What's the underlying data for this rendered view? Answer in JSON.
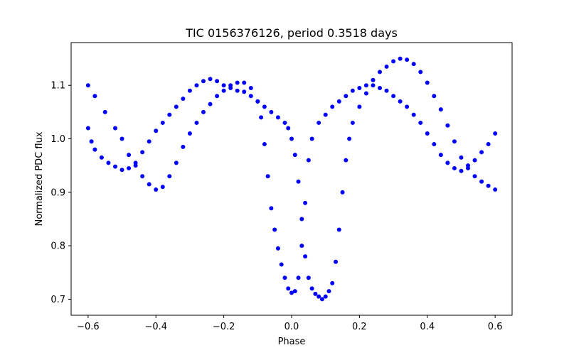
{
  "chart_data": {
    "type": "scatter",
    "title": "TIC 0156376126, period 0.3518 days",
    "xlabel": "Phase",
    "ylabel": "Normalized PDC flux",
    "xlim": [
      -0.65,
      0.65
    ],
    "ylim": [
      0.67,
      1.18
    ],
    "xticks": [
      -0.6,
      -0.4,
      -0.2,
      0.0,
      0.2,
      0.4,
      0.6
    ],
    "xtick_labels": [
      "−0.6",
      "−0.4",
      "−0.2",
      "0.0",
      "0.2",
      "0.4",
      "0.6"
    ],
    "yticks": [
      0.7,
      0.8,
      0.9,
      1.0,
      1.1
    ],
    "ytick_labels": [
      "0.7",
      "0.8",
      "0.9",
      "1.0",
      "1.1"
    ],
    "grid": false,
    "marker_color": "#0000ff",
    "series": [
      {
        "points": [
          [
            -0.6,
            1.1
          ],
          [
            -0.58,
            1.08
          ],
          [
            -0.55,
            1.05
          ],
          [
            -0.52,
            1.02
          ],
          [
            -0.5,
            1.0
          ],
          [
            -0.48,
            0.97
          ],
          [
            -0.46,
            0.95
          ],
          [
            -0.44,
            0.93
          ],
          [
            -0.42,
            0.915
          ],
          [
            -0.4,
            0.905
          ],
          [
            -0.38,
            0.91
          ],
          [
            -0.36,
            0.93
          ],
          [
            -0.34,
            0.955
          ],
          [
            -0.32,
            0.985
          ],
          [
            -0.3,
            1.01
          ],
          [
            -0.28,
            1.03
          ],
          [
            -0.26,
            1.05
          ],
          [
            -0.24,
            1.065
          ],
          [
            -0.22,
            1.08
          ],
          [
            -0.2,
            1.09
          ],
          [
            -0.18,
            1.1
          ],
          [
            -0.16,
            1.105
          ],
          [
            -0.14,
            1.105
          ],
          [
            -0.12,
            1.095
          ],
          [
            -0.1,
            1.07
          ],
          [
            -0.09,
            1.04
          ],
          [
            -0.08,
            0.99
          ],
          [
            -0.07,
            0.93
          ],
          [
            -0.06,
            0.87
          ],
          [
            -0.05,
            0.83
          ],
          [
            -0.04,
            0.795
          ],
          [
            -0.03,
            0.765
          ],
          [
            -0.02,
            0.74
          ],
          [
            -0.01,
            0.72
          ],
          [
            0.0,
            0.712
          ],
          [
            0.01,
            0.715
          ],
          [
            0.02,
            0.74
          ],
          [
            0.03,
            0.8
          ],
          [
            0.04,
            0.88
          ],
          [
            0.05,
            0.96
          ],
          [
            0.06,
            1.0
          ],
          [
            0.08,
            1.03
          ],
          [
            0.1,
            1.045
          ],
          [
            0.12,
            1.06
          ],
          [
            0.14,
            1.07
          ],
          [
            0.16,
            1.08
          ],
          [
            0.18,
            1.09
          ],
          [
            0.2,
            1.095
          ],
          [
            0.22,
            1.1
          ],
          [
            0.24,
            1.1
          ],
          [
            0.26,
            1.095
          ],
          [
            0.28,
            1.09
          ],
          [
            0.3,
            1.08
          ],
          [
            0.32,
            1.07
          ],
          [
            0.34,
            1.06
          ],
          [
            0.36,
            1.045
          ],
          [
            0.38,
            1.03
          ],
          [
            0.4,
            1.01
          ],
          [
            0.42,
            0.99
          ],
          [
            0.44,
            0.97
          ],
          [
            0.46,
            0.955
          ],
          [
            0.48,
            0.945
          ],
          [
            0.5,
            0.94
          ],
          [
            0.52,
            0.95
          ],
          [
            0.54,
            0.96
          ],
          [
            0.56,
            0.975
          ],
          [
            0.58,
            0.99
          ],
          [
            0.6,
            1.01
          ]
        ]
      },
      {
        "points": [
          [
            -0.6,
            1.02
          ],
          [
            -0.59,
            0.995
          ],
          [
            -0.58,
            0.98
          ],
          [
            -0.56,
            0.965
          ],
          [
            -0.54,
            0.955
          ],
          [
            -0.52,
            0.948
          ],
          [
            -0.5,
            0.942
          ],
          [
            -0.48,
            0.945
          ],
          [
            -0.46,
            0.955
          ],
          [
            -0.44,
            0.975
          ],
          [
            -0.42,
            0.995
          ],
          [
            -0.4,
            1.015
          ],
          [
            -0.38,
            1.03
          ],
          [
            -0.36,
            1.045
          ],
          [
            -0.34,
            1.06
          ],
          [
            -0.32,
            1.075
          ],
          [
            -0.3,
            1.09
          ],
          [
            -0.28,
            1.1
          ],
          [
            -0.26,
            1.108
          ],
          [
            -0.24,
            1.112
          ],
          [
            -0.22,
            1.108
          ],
          [
            -0.2,
            1.1
          ],
          [
            -0.18,
            1.095
          ],
          [
            -0.16,
            1.09
          ],
          [
            -0.14,
            1.088
          ],
          [
            -0.12,
            1.08
          ],
          [
            -0.1,
            1.07
          ],
          [
            -0.08,
            1.06
          ],
          [
            -0.06,
            1.05
          ],
          [
            -0.04,
            1.04
          ],
          [
            -0.02,
            1.03
          ],
          [
            -0.01,
            1.02
          ],
          [
            0.0,
            1.0
          ],
          [
            0.01,
            0.97
          ],
          [
            0.02,
            0.92
          ],
          [
            0.03,
            0.85
          ],
          [
            0.04,
            0.78
          ],
          [
            0.05,
            0.74
          ],
          [
            0.06,
            0.72
          ],
          [
            0.07,
            0.71
          ],
          [
            0.08,
            0.705
          ],
          [
            0.09,
            0.7
          ],
          [
            0.1,
            0.705
          ],
          [
            0.11,
            0.715
          ],
          [
            0.12,
            0.73
          ],
          [
            0.13,
            0.77
          ],
          [
            0.14,
            0.83
          ],
          [
            0.15,
            0.9
          ],
          [
            0.16,
            0.96
          ],
          [
            0.17,
            1.0
          ],
          [
            0.18,
            1.03
          ],
          [
            0.2,
            1.06
          ],
          [
            0.22,
            1.085
          ],
          [
            0.24,
            1.11
          ],
          [
            0.26,
            1.125
          ],
          [
            0.28,
            1.135
          ],
          [
            0.3,
            1.145
          ],
          [
            0.32,
            1.15
          ],
          [
            0.34,
            1.148
          ],
          [
            0.36,
            1.14
          ],
          [
            0.38,
            1.125
          ],
          [
            0.4,
            1.105
          ],
          [
            0.42,
            1.08
          ],
          [
            0.44,
            1.055
          ],
          [
            0.46,
            1.025
          ],
          [
            0.48,
            0.995
          ],
          [
            0.5,
            0.965
          ],
          [
            0.52,
            0.945
          ],
          [
            0.54,
            0.93
          ],
          [
            0.56,
            0.92
          ],
          [
            0.58,
            0.912
          ],
          [
            0.6,
            0.905
          ]
        ]
      }
    ]
  }
}
